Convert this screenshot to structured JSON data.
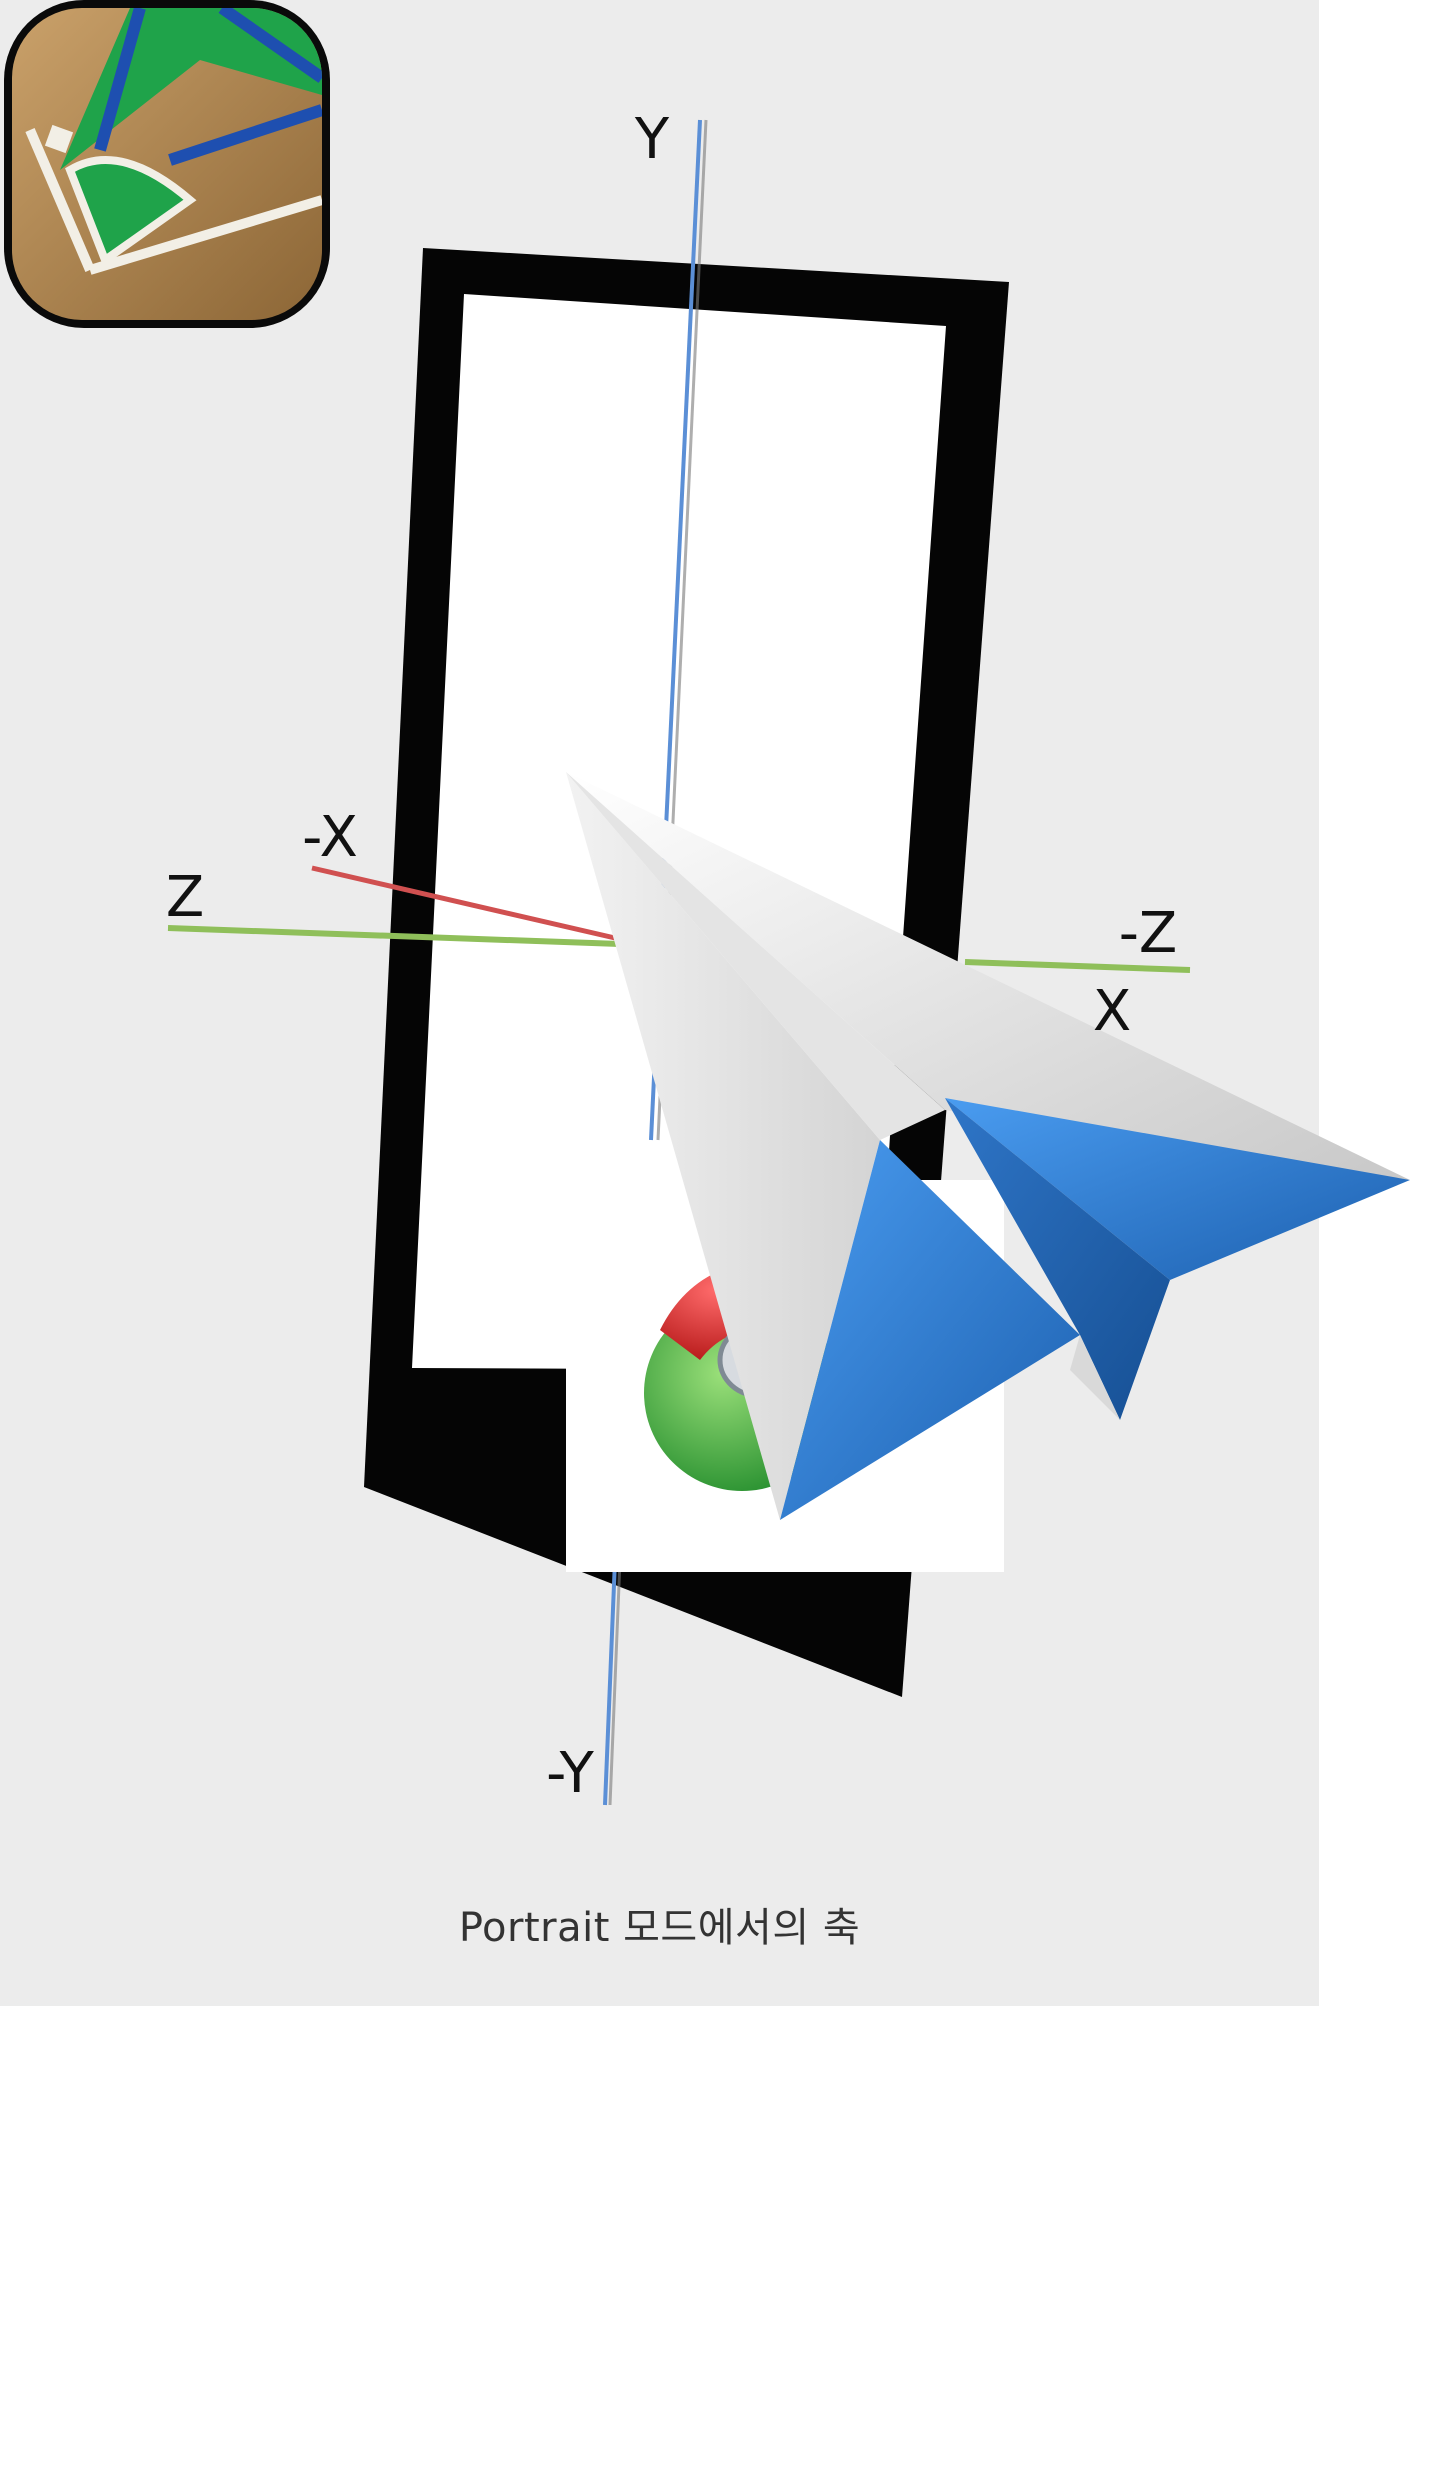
{
  "axes": {
    "y_pos": "Y",
    "y_neg": "-Y",
    "x_pos": "X",
    "x_neg": "-X",
    "z_pos": "Z",
    "z_neg": "-Z"
  },
  "caption": "Portrait 모드에서의 축",
  "colors": {
    "panel_background": "#ececec",
    "y_axis": "#5b8fd6",
    "x_axis": "#d05050",
    "z_axis": "#8fbf5a",
    "device_frame": "#050505",
    "paper_plane_blue": "#2f7fdc"
  },
  "icons": [
    "baseball-field-app-icon",
    "paper-plane-icon",
    "browser-ball-icon"
  ]
}
